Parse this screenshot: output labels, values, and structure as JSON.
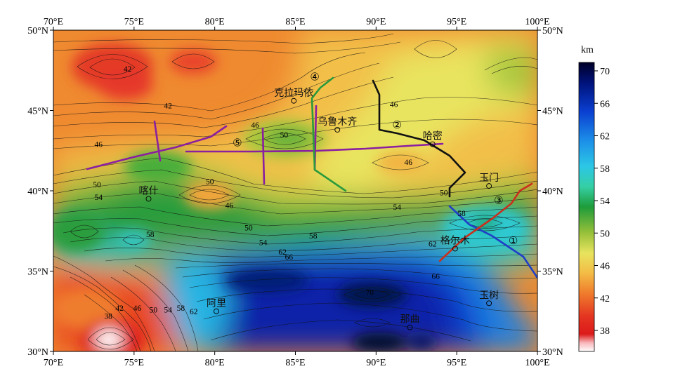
{
  "map": {
    "lon_ticks": [
      "70°E",
      "75°E",
      "80°E",
      "85°E",
      "90°E",
      "95°E",
      "100°E"
    ],
    "lat_ticks": [
      "50°N",
      "45°N",
      "40°N",
      "35°N",
      "30°N"
    ],
    "colorbar": {
      "unit": "km",
      "ticks": [
        "70",
        "66",
        "62",
        "58",
        "54",
        "50",
        "46",
        "42",
        "38"
      ],
      "colors": [
        "#000033",
        "#001a99",
        "#1565e0",
        "#2fb8e8",
        "#38cfa8",
        "#1f9e38",
        "#9dc03a",
        "#e6e25a",
        "#f2bc47",
        "#ef7d2e",
        "#e83a25",
        "#d80f14",
        "#ffffff"
      ]
    },
    "cities": [
      {
        "name": "克拉玛依",
        "lon": 84.9,
        "lat": 45.6
      },
      {
        "name": "乌鲁木齐",
        "lon": 87.6,
        "lat": 43.8
      },
      {
        "name": "哈密",
        "lon": 93.5,
        "lat": 42.9
      },
      {
        "name": "玉门",
        "lon": 97.0,
        "lat": 40.3
      },
      {
        "name": "喀什",
        "lon": 75.9,
        "lat": 39.5
      },
      {
        "name": "格尔木",
        "lon": 94.9,
        "lat": 36.4
      },
      {
        "name": "玉树",
        "lon": 97.0,
        "lat": 33.0
      },
      {
        "name": "阿里",
        "lon": 80.1,
        "lat": 32.5
      },
      {
        "name": "那曲",
        "lon": 92.1,
        "lat": 31.5
      }
    ],
    "profile_numbers": [
      {
        "label": "①",
        "lon": 98.5,
        "lat": 36.9
      },
      {
        "label": "②",
        "lon": 91.3,
        "lat": 44.1
      },
      {
        "label": "③",
        "lon": 97.6,
        "lat": 39.4
      },
      {
        "label": "④",
        "lon": 86.2,
        "lat": 47.1
      },
      {
        "label": "⑤",
        "lon": 81.4,
        "lat": 43.0
      }
    ],
    "contour_labels": [
      {
        "text": "42",
        "lon": 74.6,
        "lat": 47.6
      },
      {
        "text": "42",
        "lon": 77.1,
        "lat": 45.3
      },
      {
        "text": "46",
        "lon": 82.5,
        "lat": 44.1
      },
      {
        "text": "46",
        "lon": 72.8,
        "lat": 42.9
      },
      {
        "text": "50",
        "lon": 84.3,
        "lat": 43.5
      },
      {
        "text": "46",
        "lon": 91.1,
        "lat": 45.4
      },
      {
        "text": "46",
        "lon": 92.0,
        "lat": 41.8
      },
      {
        "text": "50",
        "lon": 79.7,
        "lat": 40.6
      },
      {
        "text": "50",
        "lon": 72.7,
        "lat": 40.4
      },
      {
        "text": "54",
        "lon": 72.8,
        "lat": 39.6
      },
      {
        "text": "46",
        "lon": 80.9,
        "lat": 39.1
      },
      {
        "text": "54",
        "lon": 91.3,
        "lat": 39.0
      },
      {
        "text": "50",
        "lon": 94.2,
        "lat": 39.9
      },
      {
        "text": "58",
        "lon": 95.3,
        "lat": 38.6
      },
      {
        "text": "50",
        "lon": 82.1,
        "lat": 37.7
      },
      {
        "text": "54",
        "lon": 83.0,
        "lat": 36.8
      },
      {
        "text": "58",
        "lon": 76.0,
        "lat": 37.3
      },
      {
        "text": "58",
        "lon": 86.1,
        "lat": 37.2
      },
      {
        "text": "62",
        "lon": 84.2,
        "lat": 36.2
      },
      {
        "text": "66",
        "lon": 84.6,
        "lat": 35.9
      },
      {
        "text": "62",
        "lon": 93.5,
        "lat": 36.7
      },
      {
        "text": "66",
        "lon": 93.7,
        "lat": 34.7
      },
      {
        "text": "70",
        "lon": 89.6,
        "lat": 33.7
      },
      {
        "text": "42",
        "lon": 74.1,
        "lat": 32.7
      },
      {
        "text": "46",
        "lon": 75.2,
        "lat": 32.7
      },
      {
        "text": "50",
        "lon": 76.2,
        "lat": 32.6
      },
      {
        "text": "54",
        "lon": 77.1,
        "lat": 32.6
      },
      {
        "text": "58",
        "lon": 77.9,
        "lat": 32.7
      },
      {
        "text": "62",
        "lon": 78.7,
        "lat": 32.5
      },
      {
        "text": "38",
        "lon": 73.4,
        "lat": 32.2
      }
    ]
  }
}
